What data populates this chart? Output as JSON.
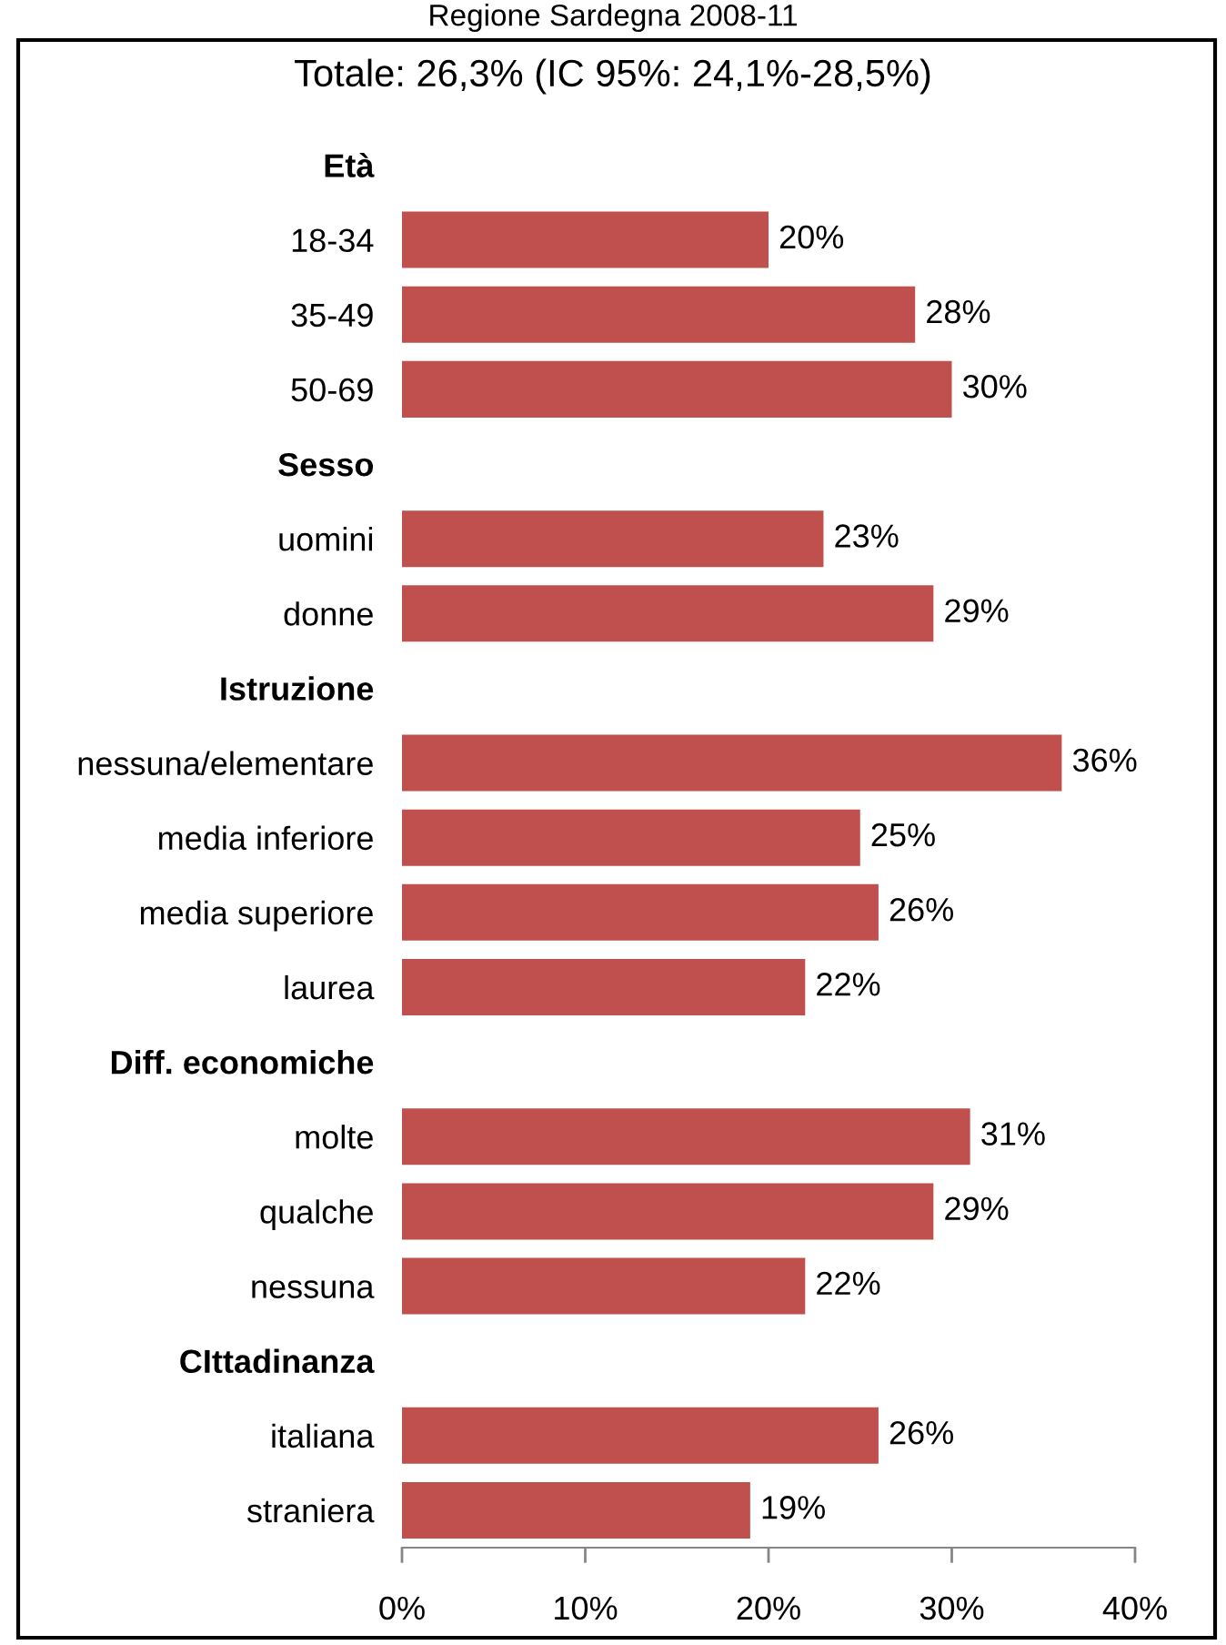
{
  "chart_data": {
    "type": "bar",
    "orientation": "horizontal",
    "title": "Regione Sardegna 2008-11",
    "subtitle": "Totale: 26,3% (IC 95%: 24,1%-28,5%)",
    "categories": [
      "Età",
      "18-34",
      "35-49",
      "50-69",
      "Sesso",
      "uomini",
      "donne",
      "Istruzione",
      "nessuna/elementare",
      "media inferiore",
      "media superiore",
      "laurea",
      "Diff. economiche",
      "molte",
      "qualche",
      "nessuna",
      "CIttadinanza",
      "italiana",
      "straniera"
    ],
    "values": [
      null,
      20,
      28,
      30,
      null,
      23,
      29,
      null,
      36,
      25,
      26,
      22,
      null,
      31,
      29,
      22,
      null,
      26,
      19
    ],
    "value_labels": [
      null,
      "20%",
      "28%",
      "30%",
      null,
      "23%",
      "29%",
      null,
      "36%",
      "25%",
      "26%",
      "22%",
      null,
      "31%",
      "29%",
      "22%",
      null,
      "26%",
      "19%"
    ],
    "color": "#c0504d",
    "xlim": [
      0,
      40
    ],
    "xticks": [
      {
        "value": 0,
        "label": "0%"
      },
      {
        "value": 10,
        "label": "10%"
      },
      {
        "value": 20,
        "label": "20%"
      },
      {
        "value": 30,
        "label": "30%"
      },
      {
        "value": 40,
        "label": "40%"
      }
    ]
  }
}
